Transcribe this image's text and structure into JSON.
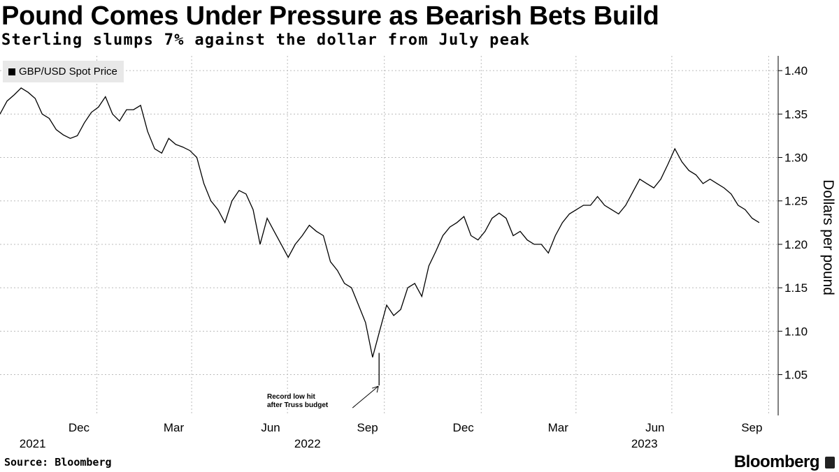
{
  "title": "Pound Comes Under Pressure as Bearish Bets Build",
  "subtitle": "Sterling slumps 7% against the dollar from July peak",
  "source": "Source: Bloomberg",
  "brand": "Bloomberg",
  "chart_data": {
    "type": "line",
    "title": "Pound Comes Under Pressure as Bearish Bets Build",
    "ylabel": "Dollars per pound",
    "xlabel": "",
    "ylim": [
      1.003,
      1.417
    ],
    "yticks": [
      "1.40",
      "1.35",
      "1.30",
      "1.25",
      "1.20",
      "1.15",
      "1.10",
      "1.05"
    ],
    "ytick_values": [
      1.4,
      1.35,
      1.3,
      1.25,
      1.2,
      1.15,
      1.1,
      1.05
    ],
    "xlim": [
      "2021-10-01",
      "2023-10-10"
    ],
    "xticks": [
      {
        "label": "Dec",
        "date": "2021-12-15"
      },
      {
        "label": "Mar",
        "date": "2022-03-15"
      },
      {
        "label": "Jun",
        "date": "2022-06-15"
      },
      {
        "label": "Sep",
        "date": "2022-09-15"
      },
      {
        "label": "Dec",
        "date": "2022-12-15"
      },
      {
        "label": "Mar",
        "date": "2023-03-15"
      },
      {
        "label": "Jun",
        "date": "2023-06-15"
      },
      {
        "label": "Sep",
        "date": "2023-09-15"
      }
    ],
    "years": [
      {
        "label": "2021",
        "date": "2021-11-01"
      },
      {
        "label": "2022",
        "date": "2022-07-20"
      },
      {
        "label": "2023",
        "date": "2023-06-05"
      }
    ],
    "grid": true,
    "legend": {
      "position": "top-left",
      "entries": [
        "GBP/USD Spot Price"
      ]
    },
    "series": [
      {
        "name": "GBP/USD Spot Price",
        "start": "2021-10-01",
        "end": "2023-09-22",
        "values": [
          1.35,
          1.365,
          1.372,
          1.38,
          1.375,
          1.368,
          1.35,
          1.345,
          1.332,
          1.326,
          1.322,
          1.325,
          1.34,
          1.352,
          1.358,
          1.37,
          1.35,
          1.342,
          1.355,
          1.355,
          1.36,
          1.33,
          1.31,
          1.305,
          1.322,
          1.315,
          1.312,
          1.308,
          1.3,
          1.27,
          1.25,
          1.24,
          1.225,
          1.25,
          1.262,
          1.258,
          1.24,
          1.2,
          1.23,
          1.215,
          1.2,
          1.185,
          1.2,
          1.21,
          1.222,
          1.215,
          1.21,
          1.18,
          1.17,
          1.155,
          1.15,
          1.13,
          1.11,
          1.07,
          1.1,
          1.13,
          1.118,
          1.125,
          1.15,
          1.155,
          1.14,
          1.175,
          1.192,
          1.21,
          1.22,
          1.225,
          1.232,
          1.21,
          1.205,
          1.215,
          1.23,
          1.236,
          1.23,
          1.21,
          1.215,
          1.205,
          1.2,
          1.2,
          1.19,
          1.21,
          1.225,
          1.235,
          1.24,
          1.245,
          1.245,
          1.255,
          1.245,
          1.24,
          1.235,
          1.245,
          1.26,
          1.275,
          1.27,
          1.265,
          1.275,
          1.292,
          1.31,
          1.295,
          1.285,
          1.28,
          1.27,
          1.275,
          1.27,
          1.265,
          1.258,
          1.245,
          1.24,
          1.23,
          1.225
        ]
      }
    ],
    "annotations": [
      {
        "text_lines": [
          "Record low hit",
          "after Truss budget"
        ],
        "date": "2022-09-26",
        "value": 1.0375
      }
    ]
  }
}
